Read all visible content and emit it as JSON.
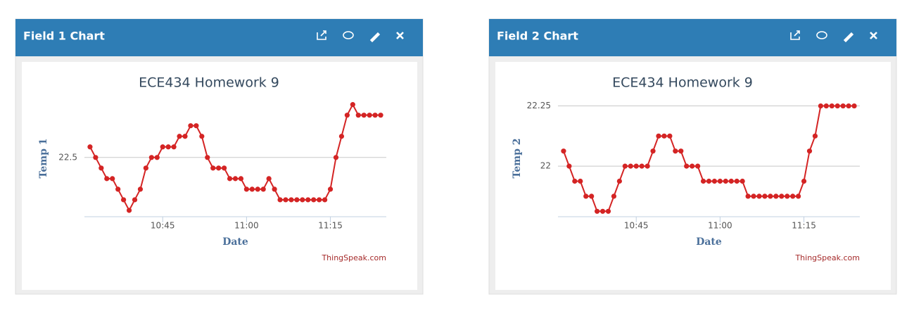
{
  "chart_data": [
    {
      "panel_title": "Field 1 Chart",
      "type": "line",
      "title": "ECE434 Homework 9",
      "ylabel": "Temp 1",
      "xlabel": "Date",
      "credit": "ThingSpeak.com",
      "color": "#d42424",
      "grid": true,
      "x": [
        "10:32",
        "10:33",
        "10:34",
        "10:35",
        "10:36",
        "10:37",
        "10:38",
        "10:39",
        "10:40",
        "10:41",
        "10:42",
        "10:43",
        "10:44",
        "10:45",
        "10:46",
        "10:47",
        "10:48",
        "10:49",
        "10:50",
        "10:51",
        "10:52",
        "10:53",
        "10:54",
        "10:55",
        "10:56",
        "10:57",
        "10:58",
        "10:59",
        "11:00",
        "11:01",
        "11:02",
        "11:03",
        "11:04",
        "11:05",
        "11:06",
        "11:07",
        "11:08",
        "11:09",
        "11:10",
        "11:11",
        "11:12",
        "11:13",
        "11:14",
        "11:15",
        "11:16",
        "11:17",
        "11:18",
        "11:19",
        "11:20",
        "11:21",
        "11:22",
        "11:23",
        "11:24"
      ],
      "values": [
        22.5625,
        22.5,
        22.4375,
        22.375,
        22.375,
        22.3125,
        22.25,
        22.1875,
        22.25,
        22.3125,
        22.4375,
        22.5,
        22.5,
        22.5625,
        22.5625,
        22.5625,
        22.625,
        22.625,
        22.6875,
        22.6875,
        22.625,
        22.5,
        22.4375,
        22.4375,
        22.4375,
        22.375,
        22.375,
        22.375,
        22.3125,
        22.3125,
        22.3125,
        22.3125,
        22.375,
        22.3125,
        22.25,
        22.25,
        22.25,
        22.25,
        22.25,
        22.25,
        22.25,
        22.25,
        22.25,
        22.3125,
        22.5,
        22.625,
        22.75,
        22.8125,
        22.75,
        22.75,
        22.75,
        22.75,
        22.75
      ],
      "xlim": [
        "10:31",
        "11:25"
      ],
      "xticks": [
        "10:45",
        "11:00",
        "11:15"
      ],
      "ylim": [
        22.15,
        22.89
      ],
      "yticks": [
        22.5
      ]
    },
    {
      "panel_title": "Field 2 Chart",
      "type": "line",
      "title": "ECE434 Homework 9",
      "ylabel": "Temp 2",
      "xlabel": "Date",
      "credit": "ThingSpeak.com",
      "color": "#d42424",
      "grid": true,
      "x": [
        "10:32",
        "10:33",
        "10:34",
        "10:35",
        "10:36",
        "10:37",
        "10:38",
        "10:39",
        "10:40",
        "10:41",
        "10:42",
        "10:43",
        "10:44",
        "10:45",
        "10:46",
        "10:47",
        "10:48",
        "10:49",
        "10:50",
        "10:51",
        "10:52",
        "10:53",
        "10:54",
        "10:55",
        "10:56",
        "10:57",
        "10:58",
        "10:59",
        "11:00",
        "11:01",
        "11:02",
        "11:03",
        "11:04",
        "11:05",
        "11:06",
        "11:07",
        "11:08",
        "11:09",
        "11:10",
        "11:11",
        "11:12",
        "11:13",
        "11:14",
        "11:15",
        "11:16",
        "11:17",
        "11:18",
        "11:19",
        "11:20",
        "11:21",
        "11:22",
        "11:23",
        "11:24"
      ],
      "values": [
        22.0625,
        22,
        21.9375,
        21.9375,
        21.875,
        21.875,
        21.8125,
        21.8125,
        21.8125,
        21.875,
        21.9375,
        22,
        22,
        22,
        22,
        22,
        22.0625,
        22.125,
        22.125,
        22.125,
        22.0625,
        22.0625,
        22,
        22,
        22,
        21.9375,
        21.9375,
        21.9375,
        21.9375,
        21.9375,
        21.9375,
        21.9375,
        21.9375,
        21.875,
        21.875,
        21.875,
        21.875,
        21.875,
        21.875,
        21.875,
        21.875,
        21.875,
        21.875,
        21.9375,
        22.0625,
        22.125,
        22.25,
        22.25,
        22.25,
        22.25,
        22.25,
        22.25,
        22.25
      ],
      "xlim": [
        "10:31",
        "11:25"
      ],
      "xticks": [
        "10:45",
        "11:00",
        "11:15"
      ],
      "ylim": [
        21.79,
        22.31
      ],
      "yticks": [
        22,
        22.25
      ]
    }
  ]
}
